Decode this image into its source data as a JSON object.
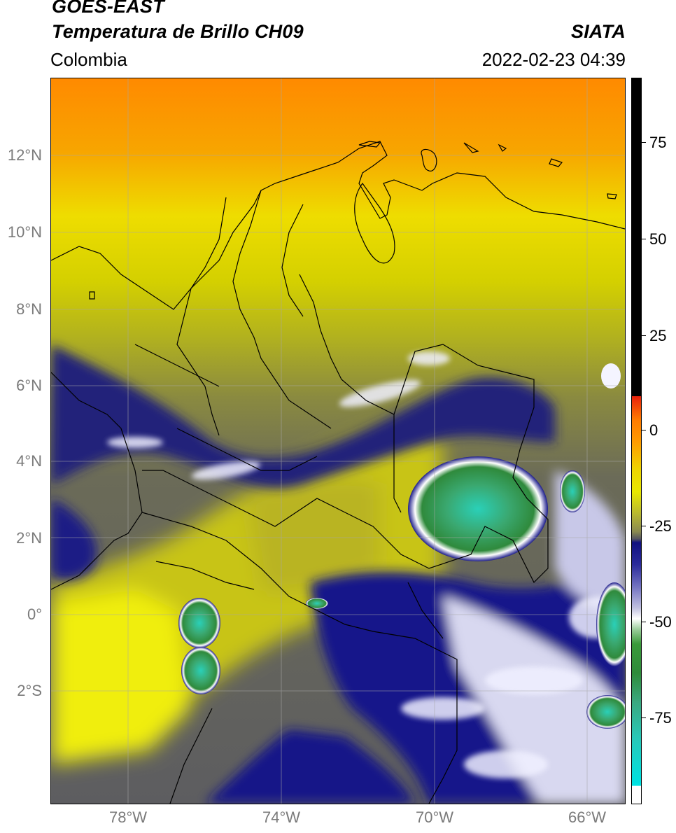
{
  "header": {
    "title_line1": "GOES-EAST",
    "title_line2": "Temperatura de Brillo CH09",
    "brand": "SIATA",
    "region": "Colombia",
    "datetime": "2022-02-23 04:39"
  },
  "axes": {
    "lat_labels": [
      "12°N",
      "10°N",
      "8°N",
      "6°N",
      "4°N",
      "2°N",
      "0°",
      "2°S"
    ],
    "lon_labels": [
      "78°W",
      "74°W",
      "70°W",
      "66°W"
    ]
  },
  "colorbar": {
    "tick_labels": [
      "75",
      "50",
      "25",
      "0",
      "-25",
      "-50",
      "-75"
    ],
    "range": [
      -95,
      90
    ],
    "colors": {
      "warm_black": "#000000",
      "red": "#e8200c",
      "orange": "#ff8c00",
      "yellow": "#e8e800",
      "olive": "#a3a340",
      "gray": "#6b6b6b",
      "navy": "#101080",
      "white": "#ffffff",
      "green": "#2e8b3a",
      "teal": "#20d0c0",
      "cyan": "#00e5e5"
    }
  }
}
